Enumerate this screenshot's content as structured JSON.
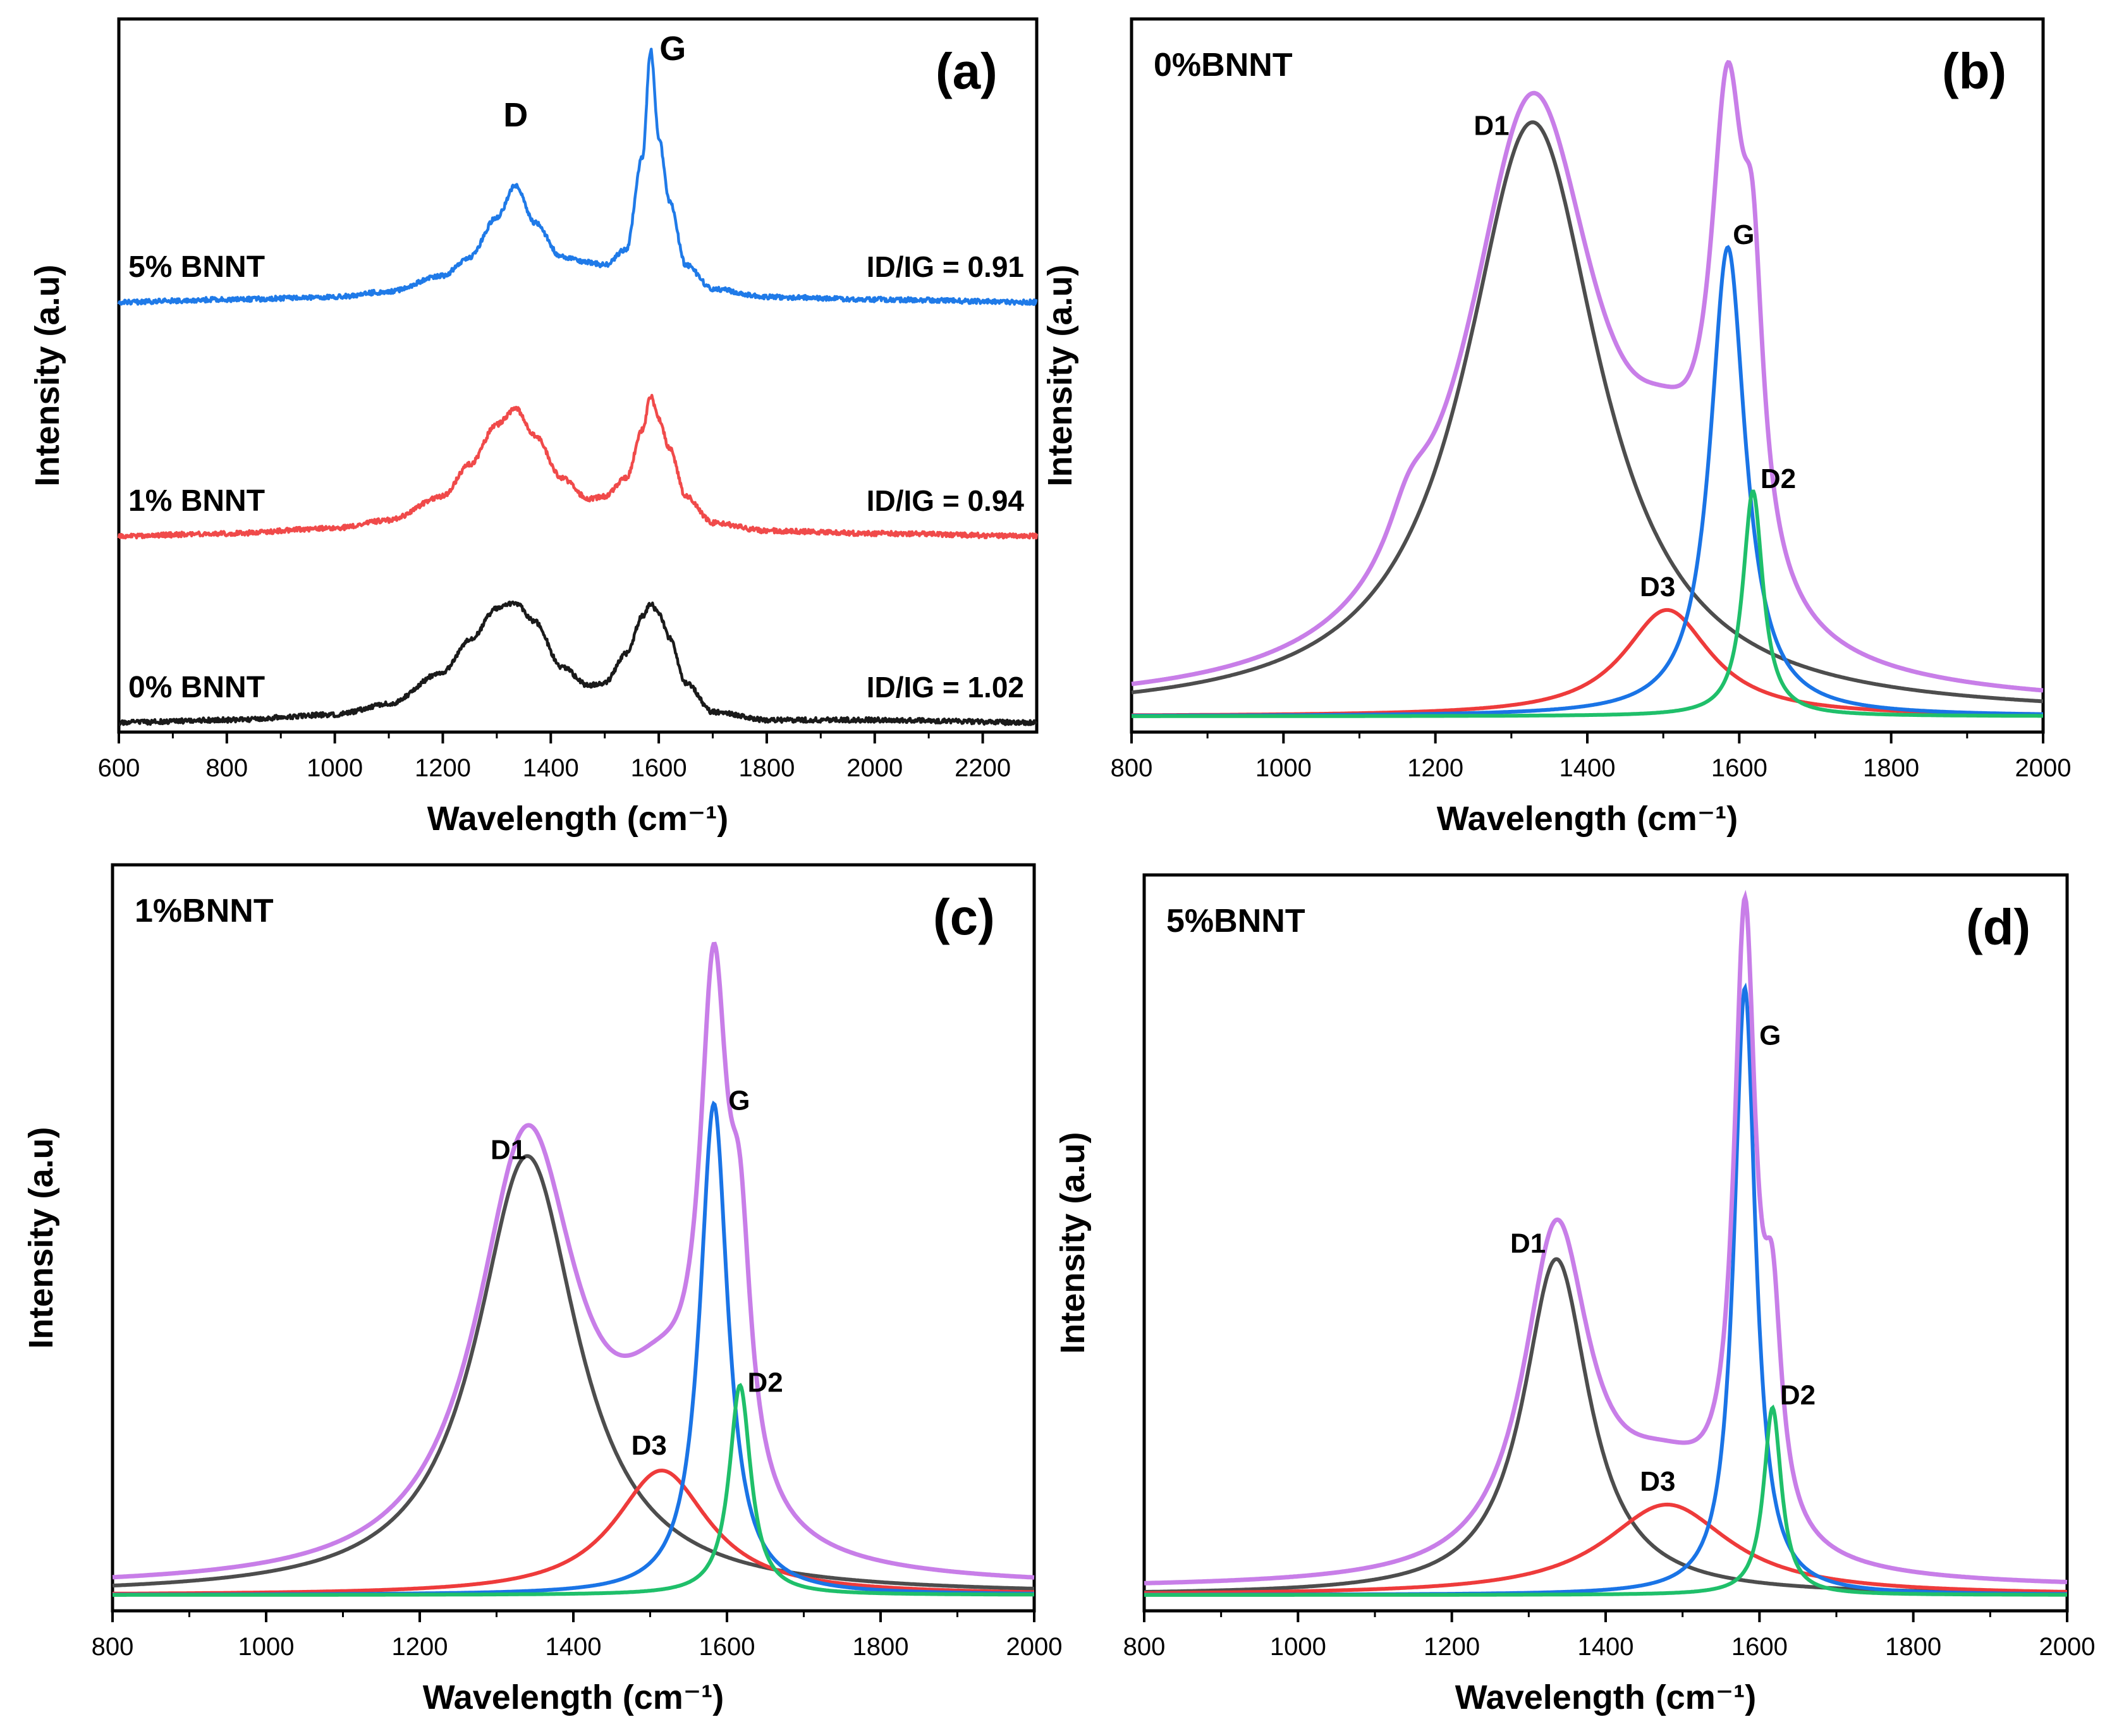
{
  "colors": {
    "black": "#1a1a1a",
    "red": "#f04a4a",
    "blue": "#1f7ae8",
    "violet": "#c87ee8",
    "dark_gray": "#4d4d4d",
    "fit_red": "#ee3b3b",
    "fit_blue": "#1a74e6",
    "fit_green": "#1fbf6a"
  },
  "chart_data": [
    {
      "type": "line",
      "panel_label": "(a)",
      "xlabel": "Wavelength (cm⁻¹)",
      "ylabel": "Intensity (a.u)",
      "xlim": [
        600,
        2300
      ],
      "xticks": [
        600,
        800,
        1000,
        1200,
        1400,
        1600,
        1800,
        2000,
        2200
      ],
      "peak_labels": [
        {
          "text": "D",
          "x": 1335
        },
        {
          "text": "G",
          "x": 1585
        }
      ],
      "series": [
        {
          "name": "5% BNNT",
          "color_key": "blue",
          "ratio_text": "ID/IG = 0.91",
          "x": [
            600,
            800,
            1000,
            1100,
            1200,
            1250,
            1300,
            1335,
            1370,
            1420,
            1470,
            1500,
            1540,
            1570,
            1585,
            1600,
            1620,
            1650,
            1700,
            1800,
            2000,
            2300
          ],
          "y": [
            0.0,
            0.01,
            0.02,
            0.04,
            0.1,
            0.17,
            0.32,
            0.44,
            0.3,
            0.17,
            0.15,
            0.14,
            0.2,
            0.55,
            0.95,
            0.62,
            0.38,
            0.14,
            0.05,
            0.02,
            0.01,
            0.0
          ]
        },
        {
          "name": "1% BNNT",
          "color_key": "red",
          "ratio_text": "ID/IG = 0.94",
          "x": [
            600,
            800,
            1000,
            1100,
            1200,
            1250,
            1300,
            1335,
            1370,
            1420,
            1470,
            1500,
            1540,
            1570,
            1585,
            1600,
            1620,
            1650,
            1700,
            1800,
            2000,
            2300
          ],
          "y": [
            0.0,
            0.01,
            0.03,
            0.06,
            0.15,
            0.27,
            0.42,
            0.48,
            0.38,
            0.22,
            0.14,
            0.15,
            0.22,
            0.4,
            0.53,
            0.44,
            0.33,
            0.15,
            0.05,
            0.02,
            0.01,
            0.0
          ]
        },
        {
          "name": "0% BNNT",
          "color_key": "black",
          "ratio_text": "ID/IG = 1.02",
          "x": [
            600,
            800,
            1000,
            1100,
            1200,
            1250,
            1300,
            1335,
            1370,
            1420,
            1470,
            1500,
            1540,
            1570,
            1585,
            1600,
            1620,
            1650,
            1700,
            1800,
            2000,
            2300
          ],
          "y": [
            0.0,
            0.01,
            0.03,
            0.07,
            0.19,
            0.31,
            0.43,
            0.45,
            0.38,
            0.21,
            0.14,
            0.15,
            0.26,
            0.4,
            0.45,
            0.41,
            0.32,
            0.15,
            0.04,
            0.01,
            0.01,
            0.0
          ]
        }
      ]
    },
    {
      "type": "line",
      "panel_label": "(b)",
      "sample_label": "0%BNNT",
      "xlabel": "Wavelength (cm⁻¹)",
      "ylabel": "Intensity (a.u)",
      "xlim": [
        800,
        2000
      ],
      "xticks": [
        800,
        1000,
        1200,
        1400,
        1600,
        1800,
        2000
      ],
      "ylim": [
        0,
        1.1
      ],
      "peaks": [
        {
          "name": "D1",
          "color_key": "dark_gray",
          "center": 1328,
          "height": 0.95,
          "width": 108
        },
        {
          "name": "D3",
          "color_key": "fit_red",
          "center": 1505,
          "height": 0.17,
          "width": 70
        },
        {
          "name": "G",
          "color_key": "fit_blue",
          "center": 1585,
          "height": 0.75,
          "width": 28
        },
        {
          "name": "D2",
          "color_key": "fit_green",
          "center": 1618,
          "height": 0.36,
          "width": 16
        },
        {
          "name": "",
          "color_key": "violet",
          "center": 1165,
          "height": 0.08,
          "width": 35
        }
      ],
      "envelope_color_key": "violet"
    },
    {
      "type": "line",
      "panel_label": "(c)",
      "sample_label": "1%BNNT",
      "xlabel": "Wavelength (cm⁻¹)",
      "ylabel": "Intensity (a.u)",
      "xlim": [
        800,
        2000
      ],
      "xticks": [
        800,
        1000,
        1200,
        1400,
        1600,
        1800,
        2000
      ],
      "ylim": [
        0,
        1.1
      ],
      "peaks": [
        {
          "name": "D1",
          "color_key": "dark_gray",
          "center": 1340,
          "height": 0.67,
          "width": 80
        },
        {
          "name": "D3",
          "color_key": "fit_red",
          "center": 1515,
          "height": 0.19,
          "width": 75
        },
        {
          "name": "G",
          "color_key": "fit_blue",
          "center": 1583,
          "height": 0.75,
          "width": 22
        },
        {
          "name": "D2",
          "color_key": "fit_green",
          "center": 1617,
          "height": 0.32,
          "width": 17
        }
      ],
      "envelope_color_key": "violet"
    },
    {
      "type": "line",
      "panel_label": "(d)",
      "sample_label": "5%BNNT",
      "xlabel": "Wavelength (cm⁻¹)",
      "ylabel": "Intensity (a.u)",
      "xlim": [
        800,
        2000
      ],
      "xticks": [
        800,
        1000,
        1200,
        1400,
        1600,
        1800,
        2000
      ],
      "ylim": [
        0,
        1.1
      ],
      "peaks": [
        {
          "name": "D1",
          "color_key": "dark_gray",
          "center": 1336,
          "height": 0.52,
          "width": 52
        },
        {
          "name": "D3",
          "color_key": "fit_red",
          "center": 1480,
          "height": 0.14,
          "width": 100
        },
        {
          "name": "G",
          "color_key": "fit_blue",
          "center": 1581,
          "height": 0.94,
          "width": 17
        },
        {
          "name": "D2",
          "color_key": "fit_green",
          "center": 1617,
          "height": 0.29,
          "width": 14
        }
      ],
      "envelope_color_key": "violet"
    }
  ]
}
